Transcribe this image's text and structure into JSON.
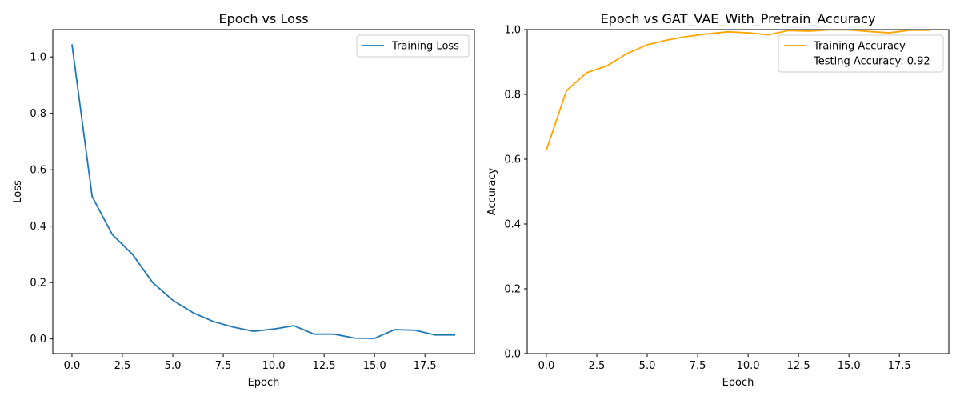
{
  "chart_data": [
    {
      "type": "line",
      "title": "Epoch vs Loss",
      "xlabel": "Epoch",
      "ylabel": "Loss",
      "xlim": [
        -0.95,
        19.95
      ],
      "ylim": [
        -0.052,
        1.097
      ],
      "xticks": [
        0,
        2.5,
        5,
        7.5,
        10,
        12.5,
        15,
        17.5
      ],
      "xtick_labels": [
        "0.0",
        "2.5",
        "5.0",
        "7.5",
        "10.0",
        "12.5",
        "15.0",
        "17.5"
      ],
      "yticks": [
        0,
        0.2,
        0.4,
        0.6,
        0.8,
        1.0
      ],
      "ytick_labels": [
        "0.0",
        "0.2",
        "0.4",
        "0.6",
        "0.8",
        "1.0"
      ],
      "grid": false,
      "legend_position": "top-right",
      "series": [
        {
          "name": "Training Loss",
          "color": "#1f77b4",
          "x": [
            0,
            1,
            2,
            3,
            4,
            5,
            6,
            7,
            8,
            9,
            10,
            11,
            12,
            13,
            14,
            15,
            16,
            17,
            18,
            19
          ],
          "y": [
            1.045,
            0.505,
            0.37,
            0.3,
            0.2,
            0.137,
            0.093,
            0.062,
            0.042,
            0.027,
            0.035,
            0.047,
            0.017,
            0.017,
            0.003,
            0.002,
            0.033,
            0.031,
            0.014,
            0.014
          ]
        }
      ],
      "legend": [
        {
          "label": "Training Loss",
          "color": "#1f77b4",
          "marker": "line"
        }
      ]
    },
    {
      "type": "line",
      "title": "Epoch vs GAT_VAE_With_Pretrain_Accuracy",
      "xlabel": "Epoch",
      "ylabel": "Accuracy",
      "xlim": [
        -0.95,
        19.95
      ],
      "ylim": [
        0,
        1.0
      ],
      "xticks": [
        0,
        2.5,
        5,
        7.5,
        10,
        12.5,
        15,
        17.5
      ],
      "xtick_labels": [
        "0.0",
        "2.5",
        "5.0",
        "7.5",
        "10.0",
        "12.5",
        "15.0",
        "17.5"
      ],
      "yticks": [
        0,
        0.2,
        0.4,
        0.6,
        0.8,
        1.0
      ],
      "ytick_labels": [
        "0.0",
        "0.2",
        "0.4",
        "0.6",
        "0.8",
        "1.0"
      ],
      "grid": false,
      "legend_position": "top-right",
      "series": [
        {
          "name": "Training Accuracy",
          "color": "#ffa500",
          "x": [
            0,
            1,
            2,
            3,
            4,
            5,
            6,
            7,
            8,
            9,
            10,
            11,
            12,
            13,
            14,
            15,
            16,
            17,
            18,
            19
          ],
          "y": [
            0.628,
            0.812,
            0.867,
            0.888,
            0.926,
            0.953,
            0.968,
            0.979,
            0.987,
            0.993,
            0.99,
            0.984,
            0.997,
            0.995,
            0.999,
            0.999,
            0.994,
            0.99,
            0.998,
            0.998
          ]
        }
      ],
      "legend": [
        {
          "label": "Training Accuracy",
          "color": "#ffa500",
          "marker": "line"
        },
        {
          "label": "Testing Accuracy: 0.92",
          "color": "",
          "marker": "none"
        }
      ]
    }
  ]
}
